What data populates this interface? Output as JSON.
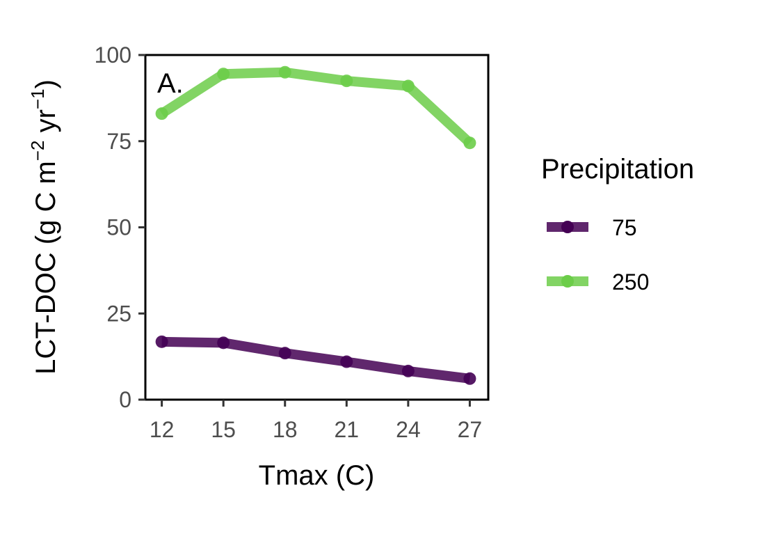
{
  "chart_data": {
    "type": "line",
    "panel_label": "A.",
    "xlabel": "Tmax (C)",
    "ylabel": "LCT-DOC (g C m−2 yr−1)",
    "ylabel_parts": {
      "main": "LCT-DOC (g C m",
      "exp1": "−2",
      "mid": " yr",
      "exp2": "−1",
      "end": ")"
    },
    "x": [
      12,
      15,
      18,
      21,
      24,
      27
    ],
    "xticks": [
      "12",
      "15",
      "18",
      "21",
      "24",
      "27"
    ],
    "yticks": [
      "0",
      "25",
      "50",
      "75",
      "100"
    ],
    "xlim": [
      11.2,
      27.9
    ],
    "ylim": [
      0,
      100
    ],
    "grid": false,
    "legend": {
      "title": "Precipitation",
      "position": "right"
    },
    "series": [
      {
        "name": "75",
        "color": "#440154",
        "values": [
          16.8,
          16.5,
          13.5,
          11.0,
          8.3,
          6.1
        ]
      },
      {
        "name": "250",
        "color": "#6ccd49",
        "values": [
          83.0,
          94.5,
          95.0,
          92.5,
          91.0,
          74.5
        ]
      }
    ]
  }
}
